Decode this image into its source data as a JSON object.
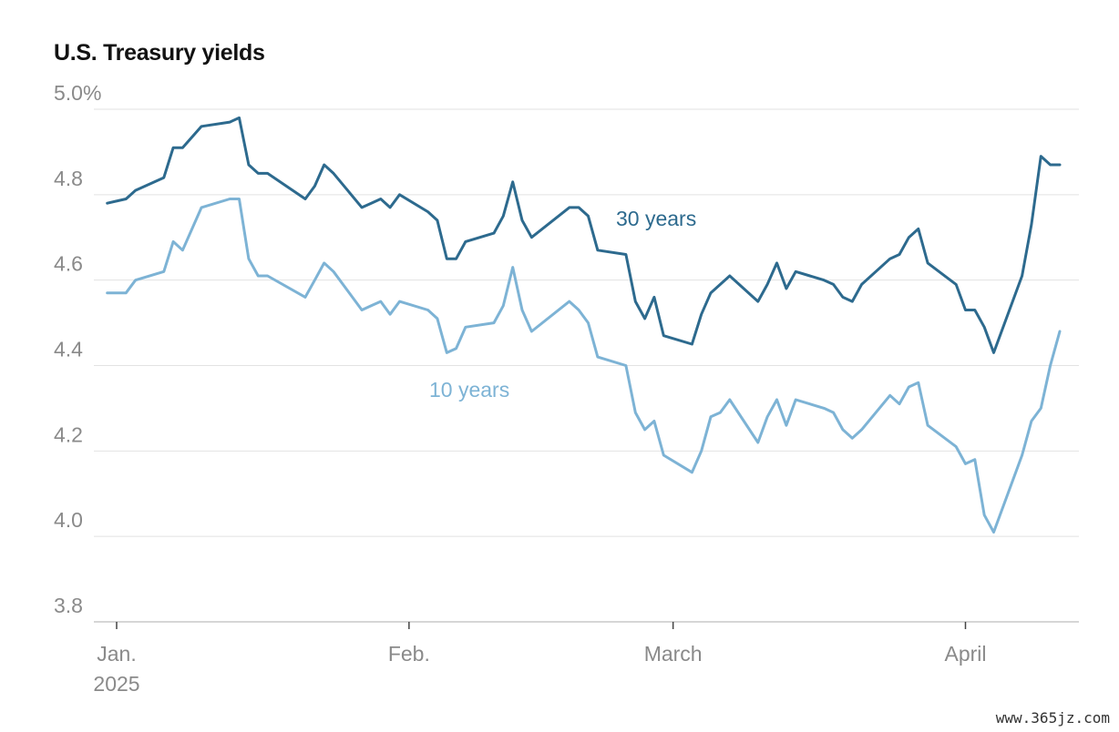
{
  "chart_data": {
    "type": "line",
    "title": "U.S. Treasury yields",
    "xlabel": "",
    "ylabel": "",
    "ylim": [
      3.8,
      5.0
    ],
    "y_ticks": [
      "5.0%",
      "4.8",
      "4.6",
      "4.4",
      "4.2",
      "4.0",
      "3.8"
    ],
    "y_tick_values": [
      5.0,
      4.8,
      4.6,
      4.4,
      4.2,
      4.0,
      3.8
    ],
    "x_ticks": [
      {
        "label": "Jan.",
        "sublabel": "2025",
        "date": "2025-01-01"
      },
      {
        "label": "Feb.",
        "sublabel": "",
        "date": "2025-02-01"
      },
      {
        "label": "March",
        "sublabel": "",
        "date": "2025-03-01"
      },
      {
        "label": "April",
        "sublabel": "",
        "date": "2025-04-01"
      }
    ],
    "grid": true,
    "series": [
      {
        "name": "30 years",
        "color": "#2d6a8e",
        "points": [
          [
            "2024-12-31",
            4.78
          ],
          [
            "2025-01-02",
            4.79
          ],
          [
            "2025-01-03",
            4.81
          ],
          [
            "2025-01-06",
            4.84
          ],
          [
            "2025-01-07",
            4.91
          ],
          [
            "2025-01-08",
            4.91
          ],
          [
            "2025-01-10",
            4.96
          ],
          [
            "2025-01-13",
            4.97
          ],
          [
            "2025-01-14",
            4.98
          ],
          [
            "2025-01-15",
            4.87
          ],
          [
            "2025-01-16",
            4.85
          ],
          [
            "2025-01-17",
            4.85
          ],
          [
            "2025-01-21",
            4.79
          ],
          [
            "2025-01-22",
            4.82
          ],
          [
            "2025-01-23",
            4.87
          ],
          [
            "2025-01-24",
            4.85
          ],
          [
            "2025-01-27",
            4.77
          ],
          [
            "2025-01-28",
            4.78
          ],
          [
            "2025-01-29",
            4.79
          ],
          [
            "2025-01-30",
            4.77
          ],
          [
            "2025-01-31",
            4.8
          ],
          [
            "2025-02-03",
            4.76
          ],
          [
            "2025-02-04",
            4.74
          ],
          [
            "2025-02-05",
            4.65
          ],
          [
            "2025-02-06",
            4.65
          ],
          [
            "2025-02-07",
            4.69
          ],
          [
            "2025-02-10",
            4.71
          ],
          [
            "2025-02-11",
            4.75
          ],
          [
            "2025-02-12",
            4.83
          ],
          [
            "2025-02-13",
            4.74
          ],
          [
            "2025-02-14",
            4.7
          ],
          [
            "2025-02-18",
            4.77
          ],
          [
            "2025-02-19",
            4.77
          ],
          [
            "2025-02-20",
            4.75
          ],
          [
            "2025-02-21",
            4.67
          ],
          [
            "2025-02-24",
            4.66
          ],
          [
            "2025-02-25",
            4.55
          ],
          [
            "2025-02-26",
            4.51
          ],
          [
            "2025-02-27",
            4.56
          ],
          [
            "2025-02-28",
            4.47
          ],
          [
            "2025-03-03",
            4.45
          ],
          [
            "2025-03-04",
            4.52
          ],
          [
            "2025-03-05",
            4.57
          ],
          [
            "2025-03-07",
            4.61
          ],
          [
            "2025-03-10",
            4.55
          ],
          [
            "2025-03-11",
            4.59
          ],
          [
            "2025-03-12",
            4.64
          ],
          [
            "2025-03-13",
            4.58
          ],
          [
            "2025-03-14",
            4.62
          ],
          [
            "2025-03-17",
            4.6
          ],
          [
            "2025-03-18",
            4.59
          ],
          [
            "2025-03-19",
            4.56
          ],
          [
            "2025-03-20",
            4.55
          ],
          [
            "2025-03-21",
            4.59
          ],
          [
            "2025-03-24",
            4.65
          ],
          [
            "2025-03-25",
            4.66
          ],
          [
            "2025-03-26",
            4.7
          ],
          [
            "2025-03-27",
            4.72
          ],
          [
            "2025-03-28",
            4.64
          ],
          [
            "2025-03-31",
            4.59
          ],
          [
            "2025-04-01",
            4.53
          ],
          [
            "2025-04-02",
            4.53
          ],
          [
            "2025-04-03",
            4.49
          ],
          [
            "2025-04-04",
            4.43
          ],
          [
            "2025-04-07",
            4.61
          ],
          [
            "2025-04-08",
            4.73
          ],
          [
            "2025-04-09",
            4.89
          ],
          [
            "2025-04-10",
            4.87
          ],
          [
            "2025-04-11",
            4.87
          ]
        ]
      },
      {
        "name": "10 years",
        "color": "#7db3d5",
        "points": [
          [
            "2024-12-31",
            4.57
          ],
          [
            "2025-01-02",
            4.57
          ],
          [
            "2025-01-03",
            4.6
          ],
          [
            "2025-01-06",
            4.62
          ],
          [
            "2025-01-07",
            4.69
          ],
          [
            "2025-01-08",
            4.67
          ],
          [
            "2025-01-10",
            4.77
          ],
          [
            "2025-01-13",
            4.79
          ],
          [
            "2025-01-14",
            4.79
          ],
          [
            "2025-01-15",
            4.65
          ],
          [
            "2025-01-16",
            4.61
          ],
          [
            "2025-01-17",
            4.61
          ],
          [
            "2025-01-21",
            4.56
          ],
          [
            "2025-01-22",
            4.6
          ],
          [
            "2025-01-23",
            4.64
          ],
          [
            "2025-01-24",
            4.62
          ],
          [
            "2025-01-27",
            4.53
          ],
          [
            "2025-01-28",
            4.54
          ],
          [
            "2025-01-29",
            4.55
          ],
          [
            "2025-01-30",
            4.52
          ],
          [
            "2025-01-31",
            4.55
          ],
          [
            "2025-02-03",
            4.53
          ],
          [
            "2025-02-04",
            4.51
          ],
          [
            "2025-02-05",
            4.43
          ],
          [
            "2025-02-06",
            4.44
          ],
          [
            "2025-02-07",
            4.49
          ],
          [
            "2025-02-10",
            4.5
          ],
          [
            "2025-02-11",
            4.54
          ],
          [
            "2025-02-12",
            4.63
          ],
          [
            "2025-02-13",
            4.53
          ],
          [
            "2025-02-14",
            4.48
          ],
          [
            "2025-02-18",
            4.55
          ],
          [
            "2025-02-19",
            4.53
          ],
          [
            "2025-02-20",
            4.5
          ],
          [
            "2025-02-21",
            4.42
          ],
          [
            "2025-02-24",
            4.4
          ],
          [
            "2025-02-25",
            4.29
          ],
          [
            "2025-02-26",
            4.25
          ],
          [
            "2025-02-27",
            4.27
          ],
          [
            "2025-02-28",
            4.19
          ],
          [
            "2025-03-03",
            4.15
          ],
          [
            "2025-03-04",
            4.2
          ],
          [
            "2025-03-05",
            4.28
          ],
          [
            "2025-03-06",
            4.29
          ],
          [
            "2025-03-07",
            4.32
          ],
          [
            "2025-03-10",
            4.22
          ],
          [
            "2025-03-11",
            4.28
          ],
          [
            "2025-03-12",
            4.32
          ],
          [
            "2025-03-13",
            4.26
          ],
          [
            "2025-03-14",
            4.32
          ],
          [
            "2025-03-17",
            4.3
          ],
          [
            "2025-03-18",
            4.29
          ],
          [
            "2025-03-19",
            4.25
          ],
          [
            "2025-03-20",
            4.23
          ],
          [
            "2025-03-21",
            4.25
          ],
          [
            "2025-03-24",
            4.33
          ],
          [
            "2025-03-25",
            4.31
          ],
          [
            "2025-03-26",
            4.35
          ],
          [
            "2025-03-27",
            4.36
          ],
          [
            "2025-03-28",
            4.26
          ],
          [
            "2025-03-31",
            4.21
          ],
          [
            "2025-04-01",
            4.17
          ],
          [
            "2025-04-02",
            4.18
          ],
          [
            "2025-04-03",
            4.05
          ],
          [
            "2025-04-04",
            4.01
          ],
          [
            "2025-04-07",
            4.19
          ],
          [
            "2025-04-08",
            4.27
          ],
          [
            "2025-04-09",
            4.3
          ],
          [
            "2025-04-10",
            4.4
          ],
          [
            "2025-04-11",
            4.48
          ]
        ]
      }
    ],
    "annotations": [
      {
        "series": "30 years",
        "text": "30 years"
      },
      {
        "series": "10 years",
        "text": "10 years"
      }
    ]
  },
  "watermark": "www.365jz.com"
}
